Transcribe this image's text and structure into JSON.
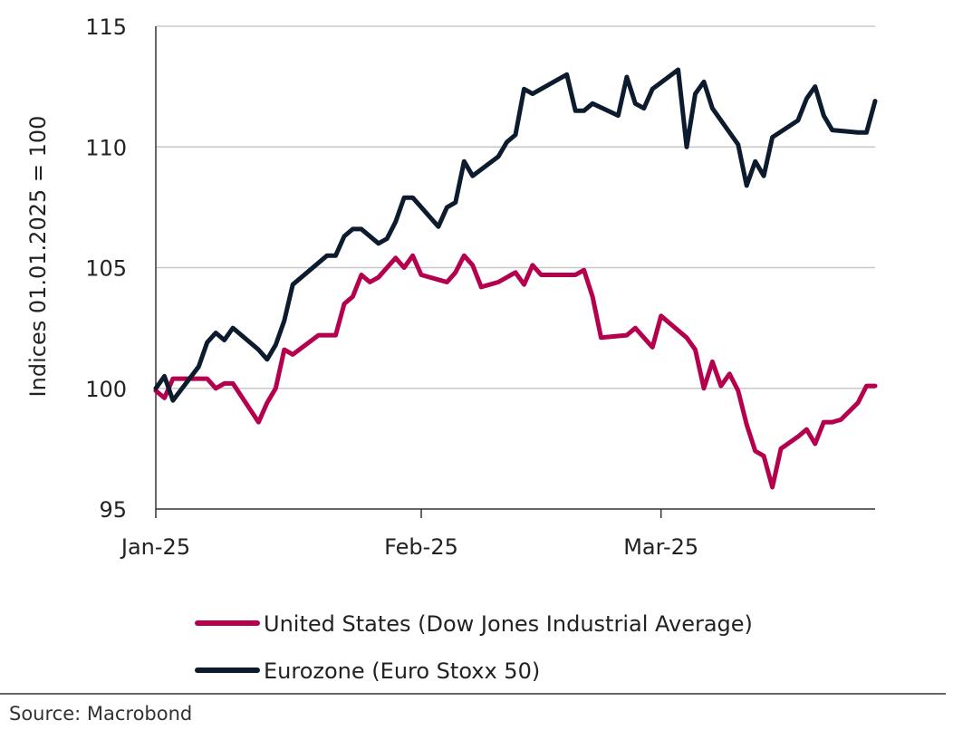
{
  "chart_data": {
    "type": "line",
    "title": "",
    "ylabel": "Indices 01.01.2025 = 100",
    "xlabel": "",
    "ylim": [
      95,
      115
    ],
    "y_ticks": [
      95,
      100,
      105,
      110,
      115
    ],
    "x_ticks": [
      "Jan-25",
      "Feb-25",
      "Mar-25"
    ],
    "grid": "horizontal",
    "legend_position": "bottom",
    "series": [
      {
        "name": "United States (Dow Jones Industrial Average)",
        "color": "#b5004e",
        "points": [
          [
            "2025-01-01",
            99.9
          ],
          [
            "2025-01-02",
            99.6
          ],
          [
            "2025-01-03",
            100.4
          ],
          [
            "2025-01-06",
            100.4
          ],
          [
            "2025-01-07",
            100.4
          ],
          [
            "2025-01-08",
            100.0
          ],
          [
            "2025-01-09",
            100.2
          ],
          [
            "2025-01-10",
            100.2
          ],
          [
            "2025-01-13",
            98.6
          ],
          [
            "2025-01-14",
            99.4
          ],
          [
            "2025-01-15",
            100.0
          ],
          [
            "2025-01-16",
            101.6
          ],
          [
            "2025-01-17",
            101.4
          ],
          [
            "2025-01-20",
            102.2
          ],
          [
            "2025-01-21",
            102.2
          ],
          [
            "2025-01-22",
            102.2
          ],
          [
            "2025-01-23",
            103.5
          ],
          [
            "2025-01-24",
            103.8
          ],
          [
            "2025-01-25",
            104.7
          ],
          [
            "2025-01-26",
            104.4
          ],
          [
            "2025-01-27",
            104.6
          ],
          [
            "2025-01-28",
            105.0
          ],
          [
            "2025-01-29",
            105.4
          ],
          [
            "2025-01-30",
            105.0
          ],
          [
            "2025-01-31",
            105.5
          ],
          [
            "2025-02-01",
            104.7
          ],
          [
            "2025-02-03",
            104.5
          ],
          [
            "2025-02-04",
            104.4
          ],
          [
            "2025-02-05",
            104.8
          ],
          [
            "2025-02-06",
            105.5
          ],
          [
            "2025-02-07",
            105.1
          ],
          [
            "2025-02-08",
            104.2
          ],
          [
            "2025-02-10",
            104.4
          ],
          [
            "2025-02-11",
            104.6
          ],
          [
            "2025-02-12",
            104.8
          ],
          [
            "2025-02-13",
            104.3
          ],
          [
            "2025-02-14",
            105.1
          ],
          [
            "2025-02-15",
            104.7
          ],
          [
            "2025-02-17",
            104.7
          ],
          [
            "2025-02-18",
            104.7
          ],
          [
            "2025-02-19",
            104.7
          ],
          [
            "2025-02-20",
            104.9
          ],
          [
            "2025-02-21",
            103.8
          ],
          [
            "2025-02-22",
            102.1
          ],
          [
            "2025-02-25",
            102.2
          ],
          [
            "2025-02-26",
            102.5
          ],
          [
            "2025-02-27",
            102.1
          ],
          [
            "2025-02-28",
            101.7
          ],
          [
            "2025-03-01",
            103.0
          ],
          [
            "2025-03-04",
            102.1
          ],
          [
            "2025-03-05",
            101.6
          ],
          [
            "2025-03-06",
            100.0
          ],
          [
            "2025-03-07",
            101.1
          ],
          [
            "2025-03-08",
            100.1
          ],
          [
            "2025-03-09",
            100.6
          ],
          [
            "2025-03-10",
            99.9
          ],
          [
            "2025-03-11",
            98.5
          ],
          [
            "2025-03-12",
            97.4
          ],
          [
            "2025-03-13",
            97.2
          ],
          [
            "2025-03-14",
            95.9
          ],
          [
            "2025-03-15",
            97.5
          ],
          [
            "2025-03-17",
            98.0
          ],
          [
            "2025-03-18",
            98.3
          ],
          [
            "2025-03-19",
            97.7
          ],
          [
            "2025-03-20",
            98.6
          ],
          [
            "2025-03-21",
            98.6
          ],
          [
            "2025-03-22",
            98.7
          ],
          [
            "2025-03-24",
            99.4
          ],
          [
            "2025-03-25",
            100.1
          ],
          [
            "2025-03-26",
            100.1
          ]
        ]
      },
      {
        "name": "Eurozone (Euro Stoxx 50)",
        "color": "#0d1b2e",
        "points": [
          [
            "2025-01-01",
            100.0
          ],
          [
            "2025-01-02",
            100.5
          ],
          [
            "2025-01-03",
            99.5
          ],
          [
            "2025-01-06",
            100.9
          ],
          [
            "2025-01-07",
            101.9
          ],
          [
            "2025-01-08",
            102.3
          ],
          [
            "2025-01-09",
            102.0
          ],
          [
            "2025-01-10",
            102.5
          ],
          [
            "2025-01-13",
            101.6
          ],
          [
            "2025-01-14",
            101.2
          ],
          [
            "2025-01-15",
            101.8
          ],
          [
            "2025-01-16",
            102.8
          ],
          [
            "2025-01-17",
            104.3
          ],
          [
            "2025-01-20",
            105.2
          ],
          [
            "2025-01-21",
            105.5
          ],
          [
            "2025-01-22",
            105.5
          ],
          [
            "2025-01-23",
            106.3
          ],
          [
            "2025-01-24",
            106.6
          ],
          [
            "2025-01-25",
            106.6
          ],
          [
            "2025-01-27",
            106.0
          ],
          [
            "2025-01-28",
            106.2
          ],
          [
            "2025-01-29",
            106.9
          ],
          [
            "2025-01-30",
            107.9
          ],
          [
            "2025-01-31",
            107.9
          ],
          [
            "2025-02-03",
            106.7
          ],
          [
            "2025-02-04",
            107.5
          ],
          [
            "2025-02-05",
            107.7
          ],
          [
            "2025-02-06",
            109.4
          ],
          [
            "2025-02-07",
            108.8
          ],
          [
            "2025-02-10",
            109.6
          ],
          [
            "2025-02-11",
            110.2
          ],
          [
            "2025-02-12",
            110.5
          ],
          [
            "2025-02-13",
            112.4
          ],
          [
            "2025-02-14",
            112.2
          ],
          [
            "2025-02-17",
            112.8
          ],
          [
            "2025-02-18",
            113.0
          ],
          [
            "2025-02-19",
            111.5
          ],
          [
            "2025-02-20",
            111.5
          ],
          [
            "2025-02-21",
            111.8
          ],
          [
            "2025-02-24",
            111.3
          ],
          [
            "2025-02-25",
            112.9
          ],
          [
            "2025-02-26",
            111.8
          ],
          [
            "2025-02-27",
            111.6
          ],
          [
            "2025-02-28",
            112.4
          ],
          [
            "2025-03-03",
            113.2
          ],
          [
            "2025-03-04",
            110.0
          ],
          [
            "2025-03-05",
            112.2
          ],
          [
            "2025-03-06",
            112.7
          ],
          [
            "2025-03-07",
            111.6
          ],
          [
            "2025-03-10",
            110.1
          ],
          [
            "2025-03-11",
            108.4
          ],
          [
            "2025-03-12",
            109.4
          ],
          [
            "2025-03-13",
            108.8
          ],
          [
            "2025-03-14",
            110.4
          ],
          [
            "2025-03-17",
            111.1
          ],
          [
            "2025-03-18",
            112.0
          ],
          [
            "2025-03-19",
            112.5
          ],
          [
            "2025-03-20",
            111.3
          ],
          [
            "2025-03-21",
            110.7
          ],
          [
            "2025-03-24",
            110.6
          ],
          [
            "2025-03-25",
            110.6
          ],
          [
            "2025-03-26",
            111.9
          ]
        ]
      }
    ]
  },
  "source": "Source: Macrobond"
}
